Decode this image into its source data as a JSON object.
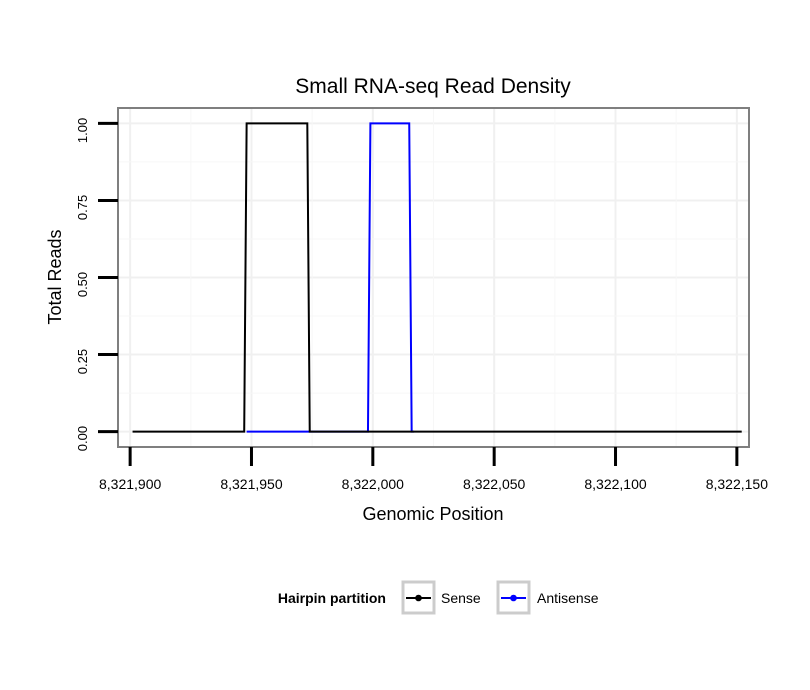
{
  "chart_data": {
    "type": "line",
    "title": "Small RNA-seq Read Density",
    "xlabel": "Genomic Position",
    "ylabel": "Total Reads",
    "xlim": [
      8321895,
      8322155
    ],
    "ylim": [
      -0.05,
      1.05
    ],
    "x_ticks": [
      8321900,
      8321950,
      8322000,
      8322050,
      8322100,
      8322150
    ],
    "x_tick_labels": [
      "8,321,900",
      "8,321,950",
      "8,322,000",
      "8,322,050",
      "8,322,100",
      "8,322,150"
    ],
    "y_ticks": [
      0,
      0.25,
      0.5,
      0.75,
      1
    ],
    "y_tick_labels": [
      "0.00",
      "0.25",
      "0.50",
      "0.75",
      "1.00"
    ],
    "grid": true,
    "legend": {
      "position": "bottom",
      "title": "Hairpin partition",
      "entries": [
        "Sense",
        "Antisense"
      ]
    },
    "series": [
      {
        "name": "Antisense",
        "color": "#0000ff",
        "x": [
          8321948,
          8321998,
          8321999,
          8322015,
          8322016,
          8322017
        ],
        "y": [
          0,
          0,
          1,
          1,
          0,
          0
        ]
      },
      {
        "name": "Sense",
        "color": "#000000",
        "x": [
          8321901,
          8321947,
          8321948,
          8321973,
          8321974,
          8322016,
          8322152
        ],
        "y": [
          0,
          0,
          1,
          1,
          0,
          0,
          0
        ]
      }
    ]
  }
}
